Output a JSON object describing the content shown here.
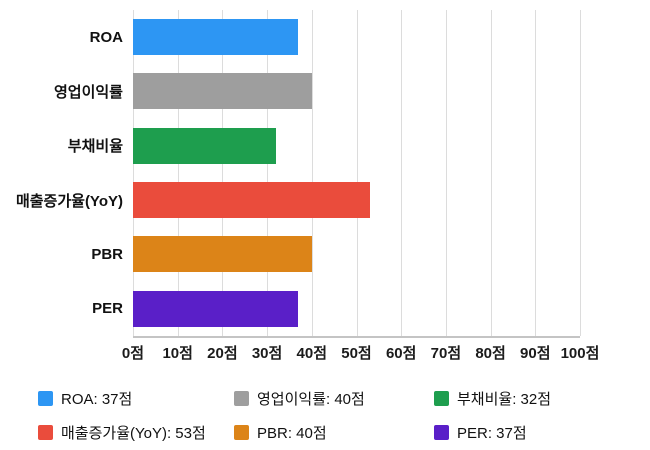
{
  "chart_data": {
    "type": "bar",
    "orientation": "horizontal",
    "title": "",
    "categories": [
      "ROA",
      "영업이익률",
      "부채비율",
      "매출증가율(YoY)",
      "PBR",
      "PER"
    ],
    "values": [
      37,
      40,
      32,
      53,
      40,
      37
    ],
    "value_unit": "점",
    "colors": [
      "#2D96F3",
      "#9E9E9E",
      "#1E9E4E",
      "#EA4C3C",
      "#DC8418",
      "#5A1FC8"
    ],
    "xlim": [
      0,
      100
    ],
    "x_ticks": [
      "0점",
      "10점",
      "20점",
      "30점",
      "40점",
      "50점",
      "60점",
      "70점",
      "80점",
      "90점",
      "100점"
    ],
    "grid": true,
    "legend_position": "bottom"
  },
  "legend": {
    "items": [
      {
        "label": "ROA: 37점",
        "color": "#2D96F3"
      },
      {
        "label": "영업이익률: 40점",
        "color": "#9E9E9E"
      },
      {
        "label": "부채비율: 32점",
        "color": "#1E9E4E"
      },
      {
        "label": "매출증가율(YoY): 53점",
        "color": "#EA4C3C"
      },
      {
        "label": "PBR: 40점",
        "color": "#DC8418"
      },
      {
        "label": "PER: 37점",
        "color": "#5A1FC8"
      }
    ]
  }
}
